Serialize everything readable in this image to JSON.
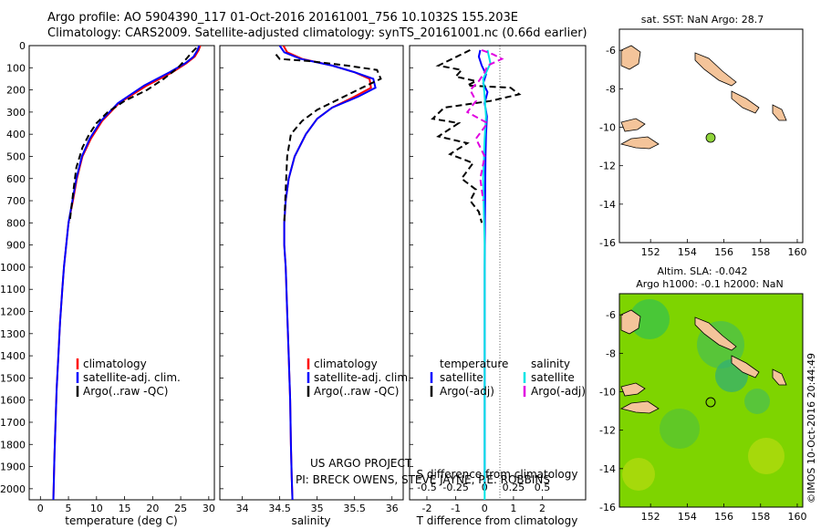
{
  "header": {
    "line1": "Argo profile: AO 5904390_117 01-Oct-2016 20161001_756 10.1032S 155.203E",
    "line2": "Climatology: CARS2009. Satellite-adjusted climatology: synTS_20161001.nc (0.66d earlier)"
  },
  "depth_ticks": [
    "0",
    "100",
    "200",
    "300",
    "400",
    "500",
    "600",
    "700",
    "800",
    "900",
    "1000",
    "1100",
    "1200",
    "1300",
    "1400",
    "1500",
    "1600",
    "1700",
    "1800",
    "1900",
    "2000"
  ],
  "panels": {
    "temperature": {
      "xlabel": "temperature (deg C)",
      "xticks": [
        "0",
        "5",
        "10",
        "15",
        "20",
        "25",
        "30"
      ],
      "legend": [
        "climatology",
        "satellite-adj. clim.",
        "Argo(..raw -QC)"
      ]
    },
    "salinity": {
      "xlabel": "salinity",
      "xticks": [
        "34",
        "34.5",
        "35",
        "35.5",
        "36"
      ],
      "legend": [
        "climatology",
        "satellite-adj. clim.",
        "Argo(..raw -QC)"
      ],
      "credit1": "US ARGO PROJECT",
      "credit2": "PI: BRECK OWENS, STEVE JAYNE, P.E. ROBBINS"
    },
    "difference": {
      "xlabel": "T difference from climatology",
      "toplabel": "S difference from climatology",
      "xticks": [
        "-2",
        "-1",
        "0",
        "1",
        "2"
      ],
      "sticks": [
        "-0.5",
        "-0.25",
        "0",
        "0.25",
        "0.5"
      ],
      "legend_t_head": "temperature",
      "legend_s_head": "salinity",
      "legend_t": [
        "satellite",
        "Argo(-adj)"
      ],
      "legend_s": [
        "satellite",
        "Argo(-adj)"
      ]
    }
  },
  "maps": {
    "sst_title": "sat. SST: NaN Argo: 28.7",
    "sla_title1": "Altim. SLA: -0.042",
    "sla_title2": "Argo h1000: -0.1 h2000: NaN",
    "lon_ticks": [
      "152",
      "154",
      "156",
      "158",
      "160"
    ],
    "lat_ticks": [
      "-6",
      "-8",
      "-10",
      "-12",
      "-14",
      "-16"
    ],
    "stamp": "©IMOS 10-Oct-2016 20:44:49"
  },
  "chart_data": [
    {
      "type": "line",
      "title": "",
      "xlabel": "temperature (deg C)",
      "ylabel": "",
      "xlim": [
        -2,
        31
      ],
      "ylim": [
        2050,
        0
      ],
      "series": [
        {
          "name": "climatology",
          "color": "#ff0000",
          "x": [
            28.5,
            28.2,
            27.5,
            26,
            23.5,
            19,
            14,
            11,
            9,
            7.5,
            6.5,
            5.8,
            5,
            4.6,
            4.2,
            3.9,
            3.5,
            3.2,
            2.9,
            2.7,
            2.5,
            2.4,
            2.3
          ],
          "y": [
            0,
            20,
            50,
            80,
            120,
            180,
            260,
            340,
            420,
            500,
            600,
            700,
            800,
            900,
            1000,
            1100,
            1250,
            1400,
            1550,
            1700,
            1850,
            1950,
            2050
          ]
        },
        {
          "name": "satellite-adj. clim.",
          "color": "#0000ff",
          "x": [
            28.3,
            28,
            27.3,
            25.8,
            23,
            18.5,
            13.8,
            10.8,
            8.8,
            7.4,
            6.4,
            5.7,
            5,
            4.6,
            4.2,
            3.9,
            3.5,
            3.2,
            2.9,
            2.7,
            2.5,
            2.4,
            2.3
          ],
          "y": [
            0,
            20,
            50,
            80,
            120,
            180,
            260,
            340,
            420,
            500,
            600,
            700,
            800,
            900,
            1000,
            1100,
            1250,
            1400,
            1550,
            1700,
            1850,
            1950,
            2050
          ]
        },
        {
          "name": "Argo(..raw -QC)",
          "color": "#000000",
          "dash": true,
          "x": [
            27.8,
            27,
            26,
            24.5,
            22,
            19,
            15,
            12,
            10,
            8.7,
            7.5,
            6.4,
            5.9,
            5.2
          ],
          "y": [
            10,
            30,
            60,
            100,
            150,
            200,
            250,
            300,
            350,
            400,
            460,
            550,
            650,
            800
          ]
        }
      ]
    },
    {
      "type": "line",
      "title": "",
      "xlabel": "salinity",
      "ylabel": "",
      "xlim": [
        33.7,
        36.15
      ],
      "ylim": [
        2050,
        0
      ],
      "series": [
        {
          "name": "climatology",
          "color": "#ff0000",
          "x": [
            34.55,
            34.6,
            34.8,
            35.2,
            35.5,
            35.7,
            35.72,
            35.5,
            35.2,
            35,
            34.85,
            34.7,
            34.62,
            34.58,
            34.56,
            34.56,
            34.58,
            34.6,
            34.62,
            34.64,
            34.65,
            34.66,
            34.67
          ],
          "y": [
            0,
            30,
            60,
            90,
            120,
            150,
            190,
            230,
            280,
            330,
            400,
            500,
            600,
            700,
            800,
            900,
            1000,
            1200,
            1400,
            1600,
            1800,
            1950,
            2050
          ]
        },
        {
          "name": "satellite-adj. clim.",
          "color": "#0000ff",
          "x": [
            34.5,
            34.56,
            34.78,
            35.2,
            35.5,
            35.75,
            35.78,
            35.55,
            35.2,
            35,
            34.85,
            34.7,
            34.62,
            34.58,
            34.56,
            34.56,
            34.58,
            34.6,
            34.62,
            34.64,
            34.65,
            34.66,
            34.67
          ],
          "y": [
            0,
            30,
            60,
            90,
            120,
            150,
            190,
            230,
            280,
            330,
            400,
            500,
            600,
            700,
            800,
            900,
            1000,
            1200,
            1400,
            1600,
            1800,
            1950,
            2050
          ]
        },
        {
          "name": "Argo(..raw -QC)",
          "color": "#000000",
          "dash": true,
          "x": [
            34.45,
            34.5,
            34.9,
            35.4,
            35.8,
            35.85,
            35.6,
            35.3,
            35,
            34.8,
            34.65,
            34.6,
            34.58,
            34.56
          ],
          "y": [
            40,
            60,
            70,
            90,
            110,
            150,
            190,
            240,
            290,
            340,
            400,
            500,
            650,
            800
          ]
        }
      ]
    },
    {
      "type": "line",
      "title": "",
      "xlabel": "T difference from climatology",
      "ylabel": "",
      "xlim": [
        -2.6,
        3.5
      ],
      "ylim": [
        2050,
        0
      ],
      "series": [
        {
          "name": "temperature satellite",
          "color": "#0000ff",
          "x": [
            -0.15,
            -0.2,
            -0.1,
            0.05,
            -0.05,
            0.1,
            0,
            0.08,
            0.05,
            0.03,
            0.02,
            0.01,
            0,
            0,
            0
          ],
          "y": [
            20,
            50,
            90,
            130,
            170,
            210,
            260,
            320,
            400,
            500,
            650,
            800,
            1000,
            1500,
            2000
          ]
        },
        {
          "name": "temperature Argo(-adj)",
          "color": "#000000",
          "dash": true,
          "x": [
            -0.5,
            -1.6,
            -0.8,
            -1,
            -0.3,
            -0.6,
            0.9,
            1.2,
            0.2,
            -1.4,
            -1.8,
            -0.9,
            -1.6,
            -0.6,
            -1.2,
            -0.4,
            -0.8,
            -0.3,
            -0.5,
            -0.2,
            -0.1
          ],
          "y": [
            20,
            90,
            110,
            140,
            160,
            180,
            190,
            220,
            250,
            280,
            330,
            350,
            410,
            440,
            490,
            530,
            600,
            650,
            700,
            750,
            800
          ]
        },
        {
          "name": "salinity satellite",
          "color": "#00e5e5",
          "x": [
            0.1,
            0.2,
            -0.05,
            0,
            0.05,
            0,
            -0.05,
            0,
            0,
            0,
            0
          ],
          "y": [
            20,
            80,
            150,
            230,
            320,
            420,
            600,
            900,
            1200,
            1600,
            2050
          ]
        },
        {
          "name": "salinity Argo(-adj)",
          "color": "#e000e0",
          "dash": true,
          "x": [
            -0.1,
            0.3,
            0.6,
            0.1,
            0,
            -0.2,
            -0.5,
            -0.3,
            -0.6,
            0.1,
            -0.3,
            0,
            -0.15,
            -0.05
          ],
          "y": [
            20,
            40,
            60,
            90,
            120,
            160,
            200,
            250,
            300,
            350,
            420,
            500,
            600,
            700
          ]
        }
      ]
    }
  ]
}
